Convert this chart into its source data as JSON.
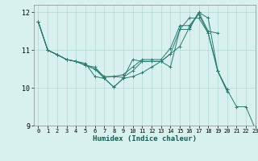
{
  "title": "",
  "xlabel": "Humidex (Indice chaleur)",
  "ylabel": "",
  "bg_color": "#d8f0ee",
  "grid_color": "#b0d8d4",
  "line_color": "#2a7a6e",
  "xlim": [
    -0.5,
    23
  ],
  "ylim": [
    9,
    12.2
  ],
  "yticks": [
    9,
    10,
    11,
    12
  ],
  "xticks": [
    0,
    1,
    2,
    3,
    4,
    5,
    6,
    7,
    8,
    9,
    10,
    11,
    12,
    13,
    14,
    15,
    16,
    17,
    18,
    19,
    20,
    21,
    22,
    23
  ],
  "series": [
    {
      "x": [
        0,
        1,
        2,
        3,
        4,
        5,
        6,
        7,
        8,
        9,
        10,
        11,
        12,
        13,
        14,
        15,
        16,
        17,
        18,
        19,
        20
      ],
      "y": [
        11.75,
        11.0,
        10.88,
        10.75,
        10.7,
        10.65,
        10.3,
        10.25,
        10.02,
        10.25,
        10.75,
        10.7,
        10.7,
        10.7,
        10.55,
        11.55,
        11.55,
        12.0,
        11.85,
        10.45,
        9.95
      ]
    },
    {
      "x": [
        0,
        1,
        2,
        3,
        4,
        5,
        6,
        7,
        8,
        9,
        10,
        11,
        12,
        13,
        14,
        15,
        16,
        17,
        18,
        19
      ],
      "y": [
        11.75,
        11.0,
        10.88,
        10.75,
        10.7,
        10.6,
        10.55,
        10.28,
        10.3,
        10.28,
        10.45,
        10.7,
        10.7,
        10.7,
        10.9,
        11.1,
        11.6,
        12.0,
        11.5,
        11.45
      ]
    },
    {
      "x": [
        0,
        1,
        2,
        3,
        4,
        5,
        6,
        7,
        8,
        9,
        10,
        11,
        12,
        13,
        14,
        15,
        16,
        17,
        18,
        19,
        20
      ],
      "y": [
        11.75,
        11.0,
        10.88,
        10.75,
        10.7,
        10.6,
        10.5,
        10.3,
        10.3,
        10.35,
        10.55,
        10.75,
        10.75,
        10.75,
        11.05,
        11.65,
        11.65,
        11.95,
        11.45,
        10.45,
        9.9
      ]
    },
    {
      "x": [
        0,
        1,
        2,
        3,
        4,
        5,
        6,
        7,
        8,
        9,
        10,
        11,
        12,
        13,
        14,
        15,
        16,
        17,
        18,
        19,
        20,
        21,
        22,
        23
      ],
      "y": [
        11.75,
        11.0,
        10.88,
        10.75,
        10.7,
        10.6,
        10.5,
        10.25,
        10.02,
        10.25,
        10.3,
        10.4,
        10.55,
        10.7,
        10.9,
        11.55,
        11.85,
        11.85,
        11.45,
        10.45,
        9.95,
        9.5,
        9.5,
        8.9
      ]
    }
  ]
}
